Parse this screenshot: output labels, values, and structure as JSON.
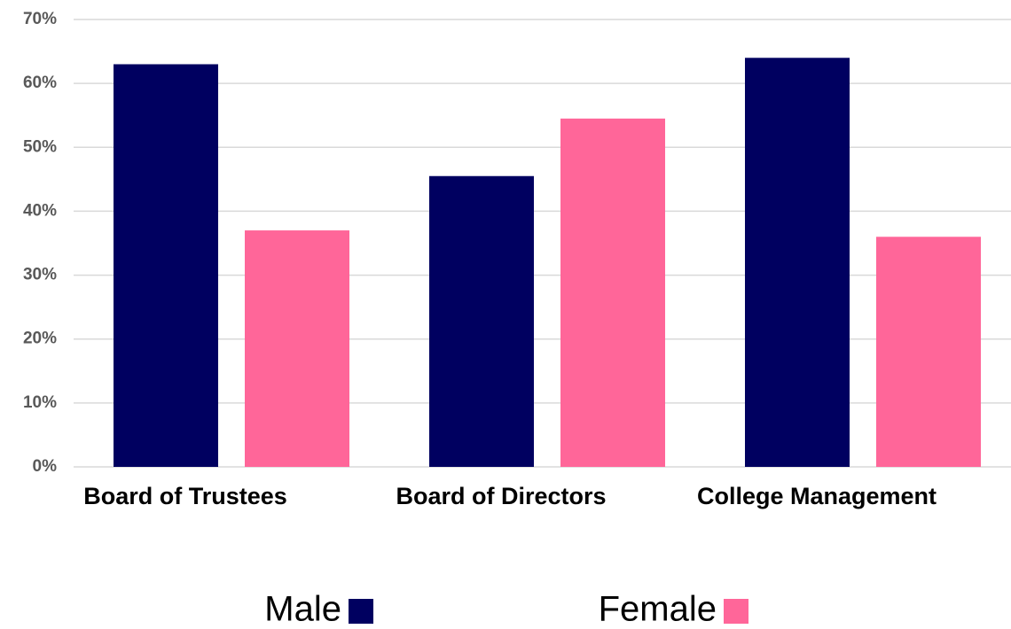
{
  "chart_data": {
    "type": "bar",
    "categories": [
      "Board of Trustees",
      "Board of Directors",
      "College Management"
    ],
    "series": [
      {
        "name": "Male",
        "color": "#000060",
        "values": [
          63,
          45.5,
          64
        ]
      },
      {
        "name": "Female",
        "color": "#ff6699",
        "values": [
          37,
          54.5,
          36
        ]
      }
    ],
    "ylim": [
      0,
      70
    ],
    "yticks": [
      {
        "value": 0,
        "label": "0%"
      },
      {
        "value": 10,
        "label": "10%"
      },
      {
        "value": 20,
        "label": "20%"
      },
      {
        "value": 30,
        "label": "30%"
      },
      {
        "value": 40,
        "label": "40%"
      },
      {
        "value": 50,
        "label": "50%"
      },
      {
        "value": 60,
        "label": "60%"
      },
      {
        "value": 70,
        "label": "70%"
      }
    ],
    "grid": true
  }
}
